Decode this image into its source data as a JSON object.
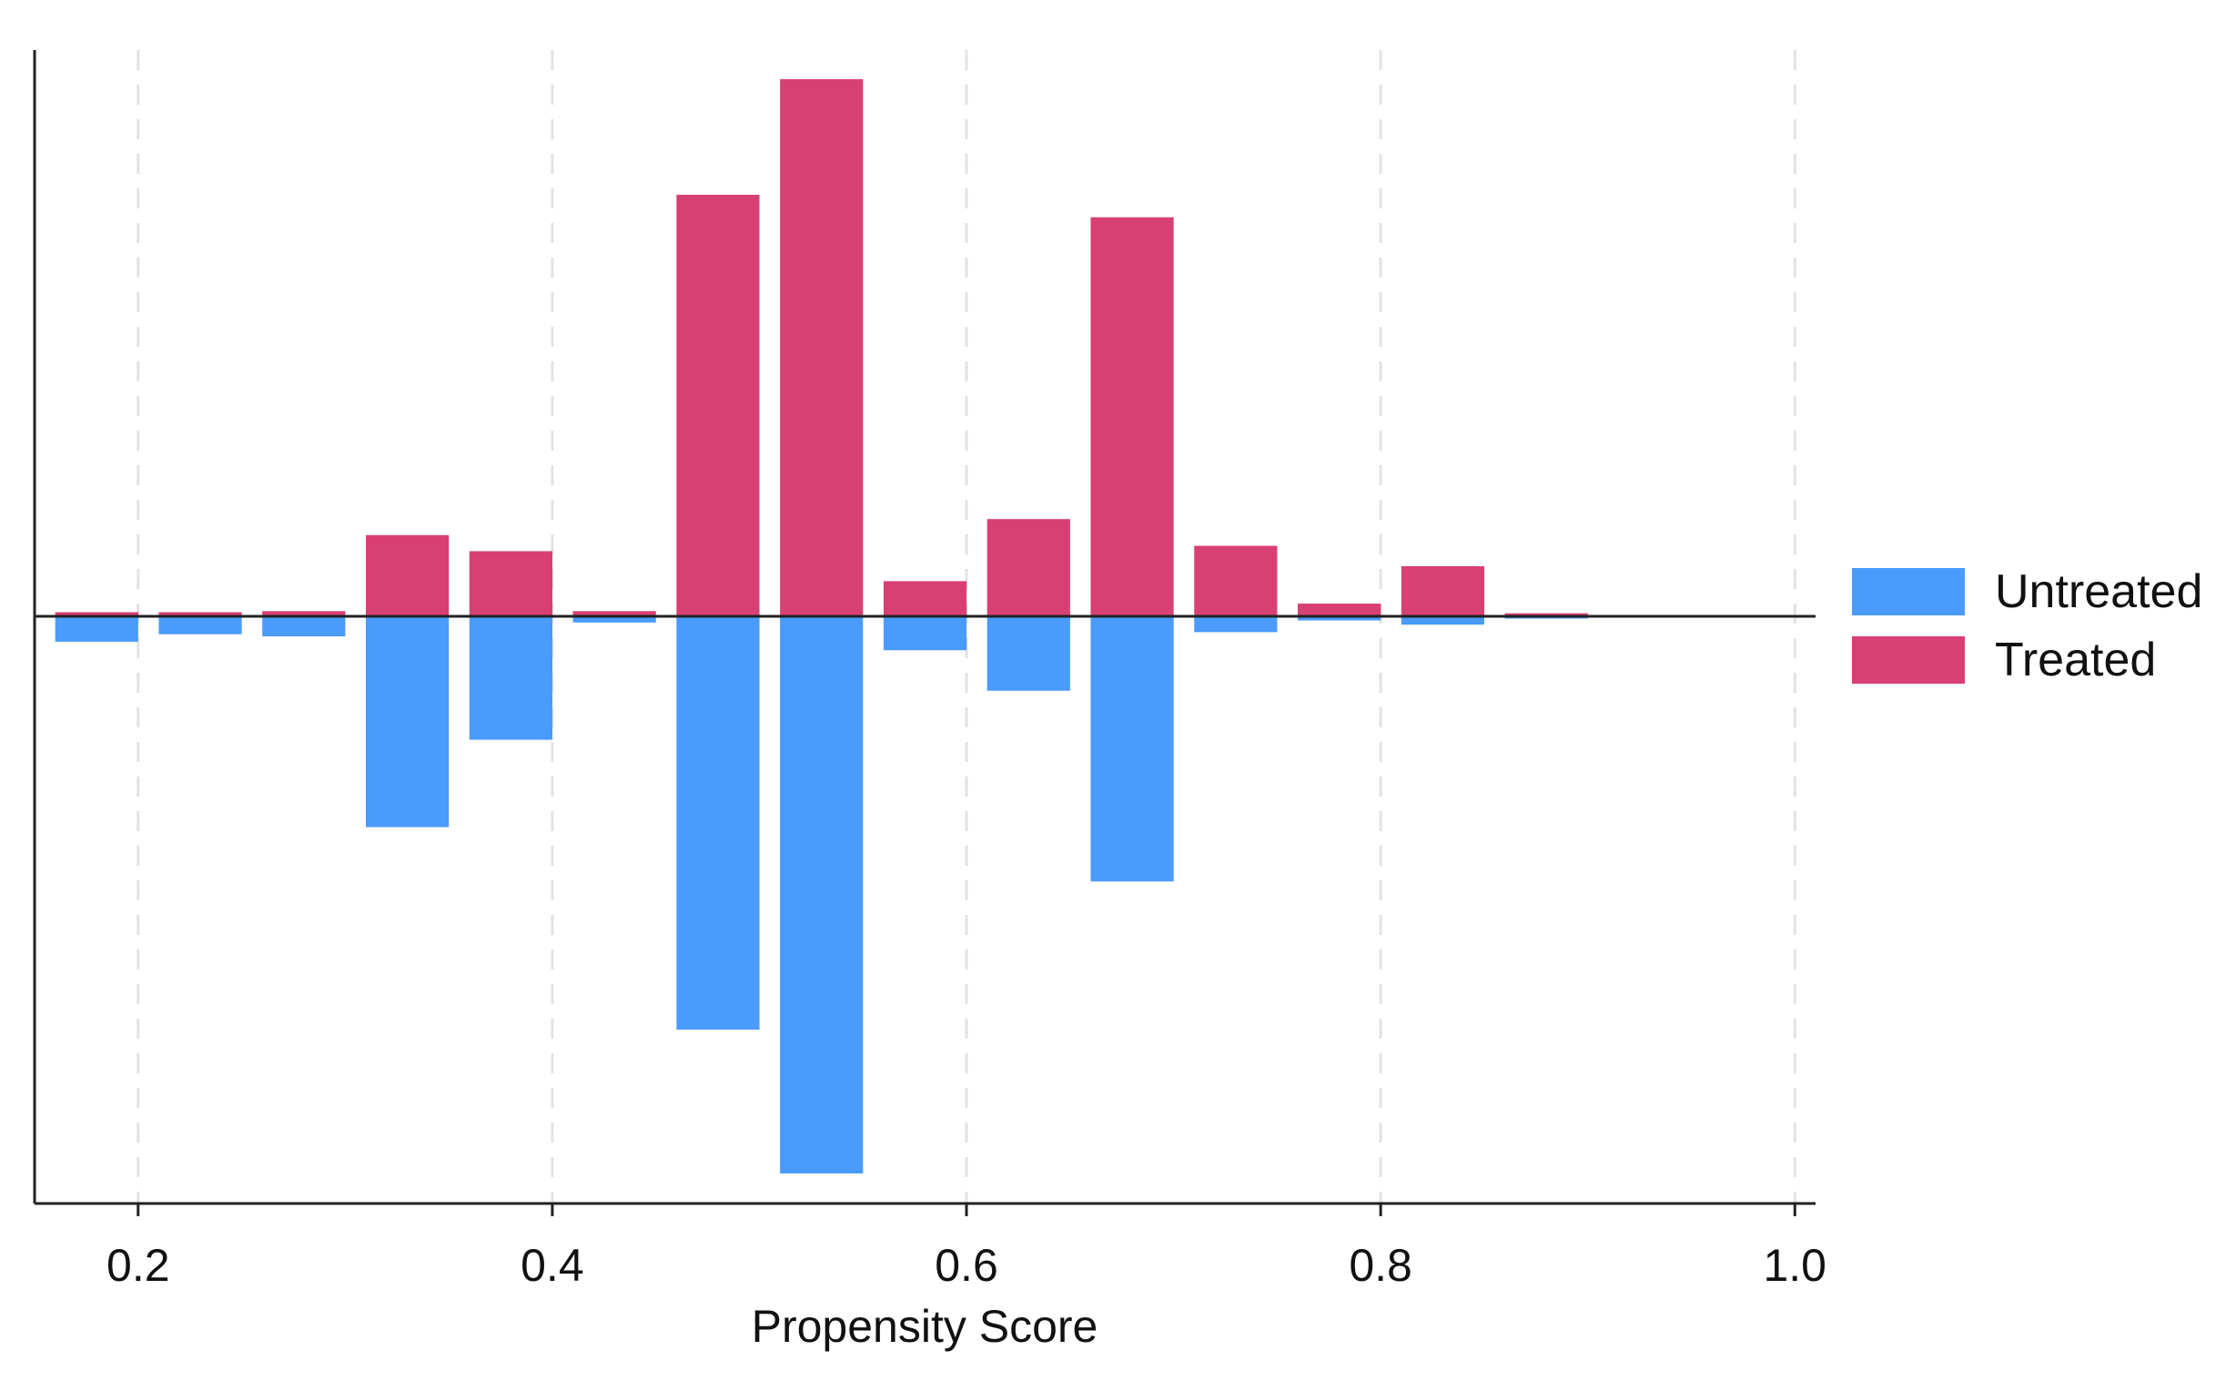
{
  "chart_data": {
    "type": "bar",
    "title": "",
    "xlabel": "Propensity Score",
    "ylabel": "",
    "xlim": [
      0.15,
      1.01
    ],
    "ylim": [
      -0.52,
      0.5
    ],
    "x_ticks": [
      "0.2",
      "0.4",
      "0.6",
      "0.8",
      "1.0"
    ],
    "x_tick_values": [
      0.2,
      0.4,
      0.6,
      0.8,
      1.0
    ],
    "bin_width": 0.04,
    "bin_centers": [
      0.18,
      0.23,
      0.28,
      0.33,
      0.38,
      0.43,
      0.48,
      0.53,
      0.58,
      0.63,
      0.68,
      0.73,
      0.78,
      0.83,
      0.88
    ],
    "grid": true,
    "legend_position": "right",
    "series": [
      {
        "name": "Untreated",
        "color": "#4a9bfc",
        "values": [
          -0.023,
          -0.016,
          -0.018,
          -0.197,
          -0.115,
          -0.005,
          -0.387,
          -0.522,
          -0.031,
          -0.069,
          -0.248,
          -0.014,
          -0.003,
          -0.007,
          -0.001
        ]
      },
      {
        "name": "Treated",
        "color": "#d84074",
        "values": [
          0.003,
          0.003,
          0.004,
          0.075,
          0.06,
          0.004,
          0.393,
          0.501,
          0.032,
          0.09,
          0.372,
          0.065,
          0.011,
          0.046,
          0.002
        ]
      }
    ],
    "legend": [
      "Untreated",
      "Treated"
    ]
  }
}
